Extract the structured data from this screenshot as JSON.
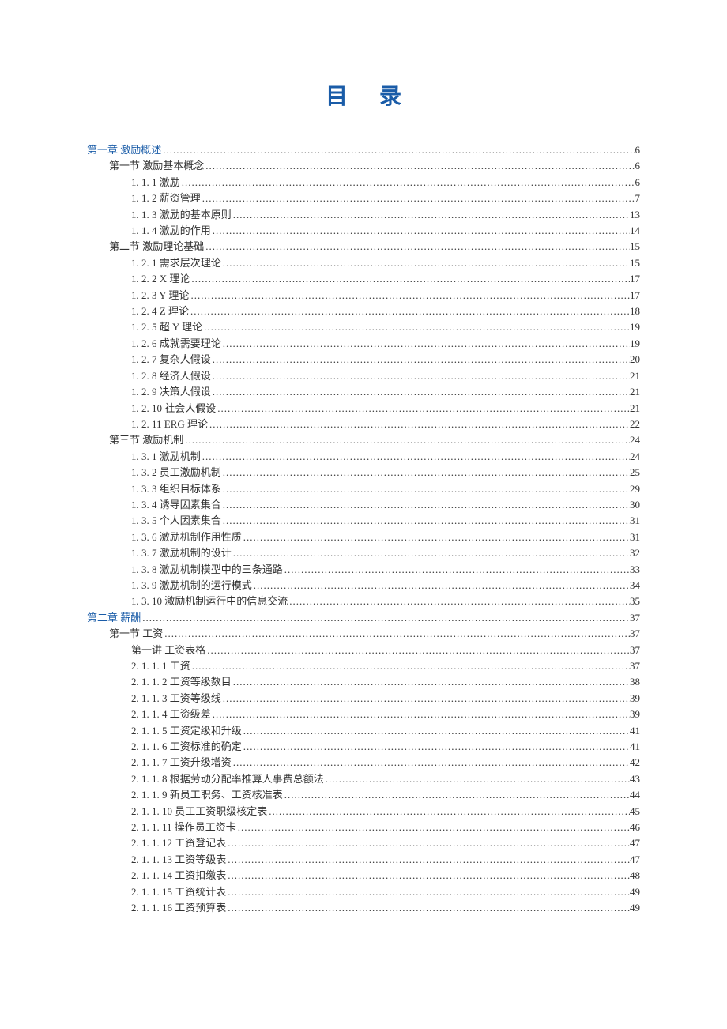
{
  "title": "目录",
  "colors": {
    "link": "#1a5ca8",
    "text": "#333333",
    "background": "#ffffff"
  },
  "toc": [
    {
      "label": "第一章    激励概述",
      "page": "6",
      "level": 0,
      "link": true
    },
    {
      "label": "第一节    激励基本概念",
      "page": "6",
      "level": 1,
      "link": false
    },
    {
      "label": "1. 1. 1    激励",
      "page": "6",
      "level": 2,
      "link": false
    },
    {
      "label": "1. 1. 2  薪资管理",
      "page": "7",
      "level": 2,
      "link": false
    },
    {
      "label": "1. 1. 3 激励的基本原则",
      "page": "13",
      "level": 2,
      "link": false
    },
    {
      "label": "1. 1. 4 激励的作用",
      "page": "14",
      "level": 2,
      "link": false
    },
    {
      "label": "第二节    激励理论基础",
      "page": "15",
      "level": 1,
      "link": false
    },
    {
      "label": "1. 2. 1  需求层次理论",
      "page": "15",
      "level": 2,
      "link": false
    },
    {
      "label": "1. 2. 2  X 理论",
      "page": "17",
      "level": 2,
      "link": false
    },
    {
      "label": "1. 2. 3  Y 理论",
      "page": "17",
      "level": 2,
      "link": false
    },
    {
      "label": "1. 2. 4 Z 理论",
      "page": "18",
      "level": 2,
      "link": false
    },
    {
      "label": "1. 2. 5  超 Y 理论",
      "page": "19",
      "level": 2,
      "link": false
    },
    {
      "label": "1. 2. 6 成就需要理论",
      "page": "19",
      "level": 2,
      "link": false
    },
    {
      "label": "1. 2. 7 复杂人假设",
      "page": "20",
      "level": 2,
      "link": false
    },
    {
      "label": "1. 2. 8  经济人假设",
      "page": "21",
      "level": 2,
      "link": false
    },
    {
      "label": "1. 2. 9  决策人假设",
      "page": "21",
      "level": 2,
      "link": false
    },
    {
      "label": "1. 2. 10  社会人假设",
      "page": "21",
      "level": 2,
      "link": false
    },
    {
      "label": "1. 2. 11 ERG 理论",
      "page": "22",
      "level": 2,
      "link": false
    },
    {
      "label": "第三节    激励机制",
      "page": "24",
      "level": 1,
      "link": false
    },
    {
      "label": "1. 3. 1  激励机制",
      "page": "24",
      "level": 2,
      "link": false
    },
    {
      "label": "1. 3. 2 员工激励机制",
      "page": "25",
      "level": 2,
      "link": false
    },
    {
      "label": "1. 3. 3  组织目标体系",
      "page": "29",
      "level": 2,
      "link": false
    },
    {
      "label": "1. 3. 4 诱导因素集合",
      "page": "30",
      "level": 2,
      "link": false
    },
    {
      "label": "1. 3. 5  个人因素集合",
      "page": "31",
      "level": 2,
      "link": false
    },
    {
      "label": "1. 3. 6 激励机制作用性质",
      "page": "31",
      "level": 2,
      "link": false
    },
    {
      "label": "1. 3. 7 激励机制的设计",
      "page": "32",
      "level": 2,
      "link": false
    },
    {
      "label": "1. 3. 8 激励机制模型中的三条通路",
      "page": "33",
      "level": 2,
      "link": false
    },
    {
      "label": "1. 3. 9 激励机制的运行模式",
      "page": "34",
      "level": 2,
      "link": false
    },
    {
      "label": "1. 3. 10  激励机制运行中的信息交流",
      "page": "35",
      "level": 2,
      "link": false
    },
    {
      "label": "第二章    薪酬",
      "page": "37",
      "level": 0,
      "link": true
    },
    {
      "label": "第一节    工资",
      "page": "37",
      "level": 1,
      "link": false
    },
    {
      "label": "第一讲  工资表格",
      "page": "37",
      "level": 2,
      "link": false
    },
    {
      "label": "2. 1. 1. 1 工资",
      "page": "37",
      "level": 2,
      "link": false
    },
    {
      "label": "2. 1. 1. 2  工资等级数目",
      "page": "38",
      "level": 2,
      "link": false
    },
    {
      "label": "2. 1. 1. 3  工资等级线",
      "page": "39",
      "level": 2,
      "link": false
    },
    {
      "label": "2. 1. 1. 4  工资级差",
      "page": "39",
      "level": 2,
      "link": false
    },
    {
      "label": "2. 1. 1. 5 工资定级和升级",
      "page": "41",
      "level": 2,
      "link": false
    },
    {
      "label": "2. 1. 1. 6 工资标准的确定",
      "page": "41",
      "level": 2,
      "link": false
    },
    {
      "label": "2. 1. 1. 7 工资升级增资",
      "page": "42",
      "level": 2,
      "link": false
    },
    {
      "label": "2. 1. 1. 8 根据劳动分配率推算人事费总额法",
      "page": "43",
      "level": 2,
      "link": false
    },
    {
      "label": "2. 1. 1. 9  新员工职务、工资核准表",
      "page": "44",
      "level": 2,
      "link": false
    },
    {
      "label": "2. 1. 1. 10  员工工资职级核定表",
      "page": "45",
      "level": 2,
      "link": false
    },
    {
      "label": "2. 1. 1. 11  操作员工资卡",
      "page": "46",
      "level": 2,
      "link": false
    },
    {
      "label": "2. 1. 1. 12  工资登记表",
      "page": "47",
      "level": 2,
      "link": false
    },
    {
      "label": "2. 1. 1. 13  工资等级表",
      "page": "47",
      "level": 2,
      "link": false
    },
    {
      "label": "2. 1. 1. 14 工资扣缴表",
      "page": "48",
      "level": 2,
      "link": false
    },
    {
      "label": "2. 1. 1. 15 工资统计表",
      "page": "49",
      "level": 2,
      "link": false
    },
    {
      "label": "2. 1. 1. 16 工资预算表",
      "page": "49",
      "level": 2,
      "link": false
    }
  ]
}
